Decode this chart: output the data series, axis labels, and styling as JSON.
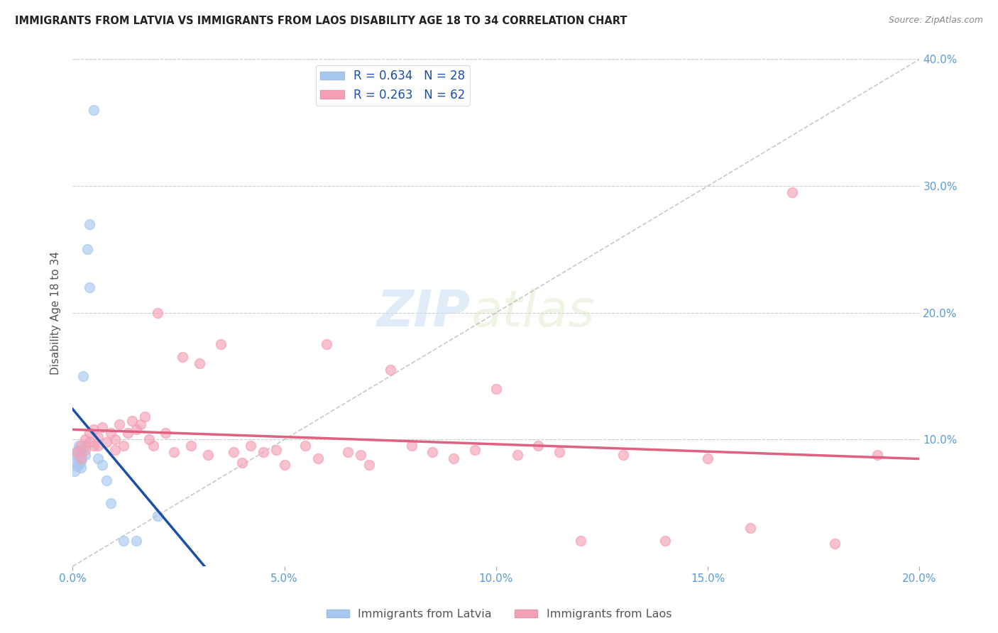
{
  "title": "IMMIGRANTS FROM LATVIA VS IMMIGRANTS FROM LAOS DISABILITY AGE 18 TO 34 CORRELATION CHART",
  "source": "Source: ZipAtlas.com",
  "ylabel": "Disability Age 18 to 34",
  "xlim": [
    0.0,
    0.2
  ],
  "ylim": [
    0.0,
    0.4
  ],
  "r_latvia": 0.634,
  "n_latvia": 28,
  "r_laos": 0.263,
  "n_laos": 62,
  "color_latvia": "#A8C8F0",
  "color_laos": "#F4A0B5",
  "color_latvia_line": "#1B4FA8",
  "color_laos_line": "#E06080",
  "legend_labels": [
    "Immigrants from Latvia",
    "Immigrants from Laos"
  ],
  "watermark_zip": "ZIP",
  "watermark_atlas": "atlas",
  "latvia_x": [
    0.0005,
    0.0008,
    0.001,
    0.001,
    0.0012,
    0.0013,
    0.0015,
    0.0015,
    0.0017,
    0.0018,
    0.002,
    0.002,
    0.002,
    0.0022,
    0.0025,
    0.003,
    0.003,
    0.0035,
    0.004,
    0.004,
    0.005,
    0.006,
    0.007,
    0.008,
    0.009,
    0.012,
    0.015,
    0.02
  ],
  "latvia_y": [
    0.075,
    0.082,
    0.088,
    0.079,
    0.091,
    0.085,
    0.095,
    0.08,
    0.092,
    0.088,
    0.09,
    0.083,
    0.078,
    0.085,
    0.15,
    0.095,
    0.088,
    0.25,
    0.27,
    0.22,
    0.36,
    0.085,
    0.08,
    0.068,
    0.05,
    0.02,
    0.02,
    0.04
  ],
  "laos_x": [
    0.001,
    0.002,
    0.002,
    0.003,
    0.003,
    0.004,
    0.004,
    0.005,
    0.005,
    0.006,
    0.006,
    0.007,
    0.008,
    0.009,
    0.01,
    0.01,
    0.011,
    0.012,
    0.013,
    0.014,
    0.015,
    0.016,
    0.017,
    0.018,
    0.019,
    0.02,
    0.022,
    0.024,
    0.026,
    0.028,
    0.03,
    0.032,
    0.035,
    0.038,
    0.04,
    0.042,
    0.045,
    0.048,
    0.05,
    0.055,
    0.058,
    0.06,
    0.065,
    0.068,
    0.07,
    0.075,
    0.08,
    0.085,
    0.09,
    0.095,
    0.1,
    0.105,
    0.11,
    0.115,
    0.12,
    0.13,
    0.14,
    0.15,
    0.16,
    0.17,
    0.18,
    0.19
  ],
  "laos_y": [
    0.09,
    0.095,
    0.085,
    0.1,
    0.092,
    0.098,
    0.105,
    0.095,
    0.108,
    0.102,
    0.095,
    0.11,
    0.098,
    0.105,
    0.092,
    0.1,
    0.112,
    0.095,
    0.105,
    0.115,
    0.108,
    0.112,
    0.118,
    0.1,
    0.095,
    0.2,
    0.105,
    0.09,
    0.165,
    0.095,
    0.16,
    0.088,
    0.175,
    0.09,
    0.082,
    0.095,
    0.09,
    0.092,
    0.08,
    0.095,
    0.085,
    0.175,
    0.09,
    0.088,
    0.08,
    0.155,
    0.095,
    0.09,
    0.085,
    0.092,
    0.14,
    0.088,
    0.095,
    0.09,
    0.02,
    0.088,
    0.02,
    0.085,
    0.03,
    0.295,
    0.018,
    0.088
  ]
}
